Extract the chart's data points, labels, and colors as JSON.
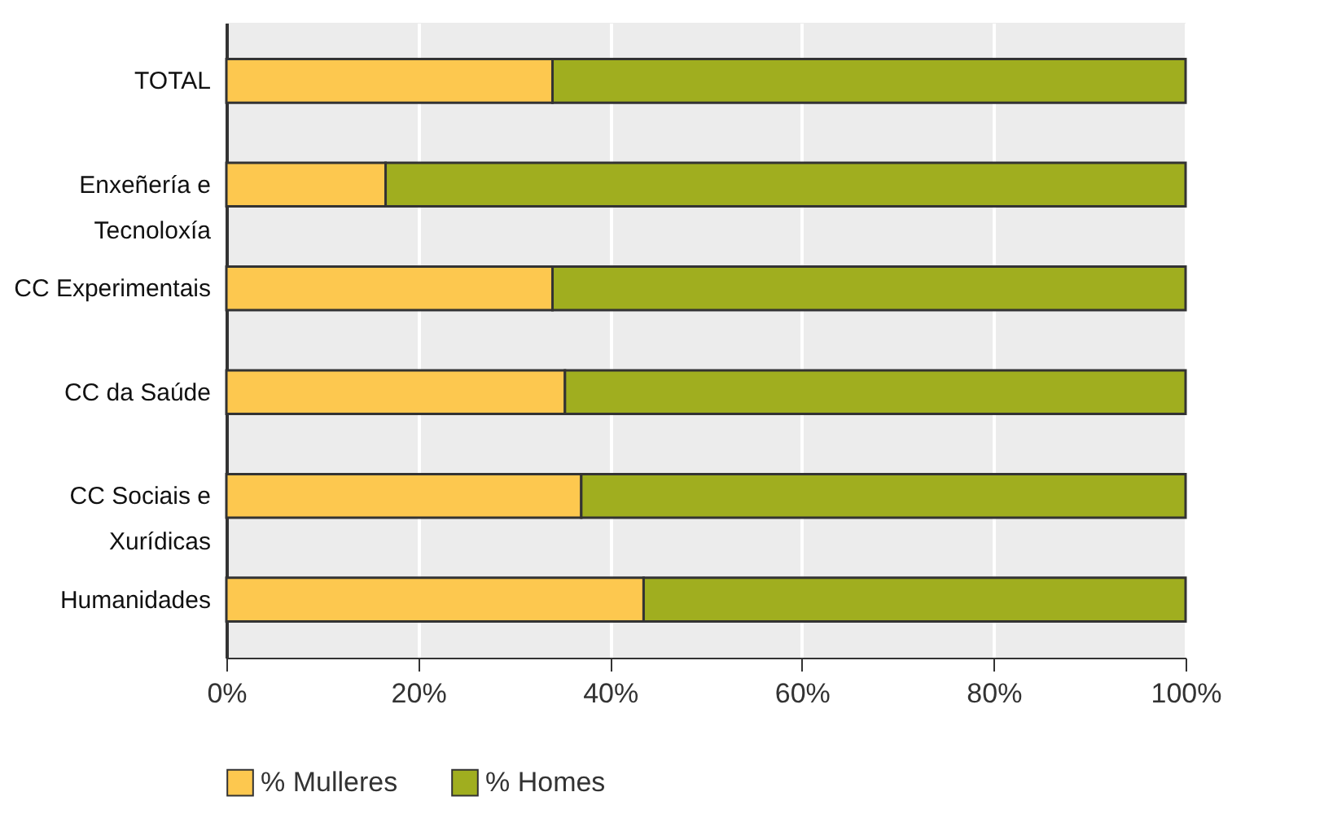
{
  "chart_data": {
    "type": "bar",
    "orientation": "horizontal",
    "stacked": true,
    "categories": [
      "TOTAL",
      "Enxeñería e Tecnoloxía",
      "CC Experimentais",
      "CC da Saúde",
      "CC Sociais e Xurídicas",
      "Humanidades"
    ],
    "series": [
      {
        "name": "% Mulleres",
        "color": "#fdc84f",
        "values": [
          34,
          16.6,
          34,
          35.3,
          37,
          43.5
        ]
      },
      {
        "name": "% Homes",
        "color": "#a0ae1f",
        "values": [
          66,
          83.4,
          66,
          64.7,
          63,
          56.5
        ]
      }
    ],
    "xlim": [
      0,
      100
    ],
    "xticks": [
      {
        "value": 0,
        "label": "0%"
      },
      {
        "value": 20,
        "label": "20%"
      },
      {
        "value": 40,
        "label": "40%"
      },
      {
        "value": 60,
        "label": "60%"
      },
      {
        "value": 80,
        "label": "80%"
      },
      {
        "value": 100,
        "label": "100%"
      }
    ],
    "grid": "x",
    "legend": "bottom"
  }
}
